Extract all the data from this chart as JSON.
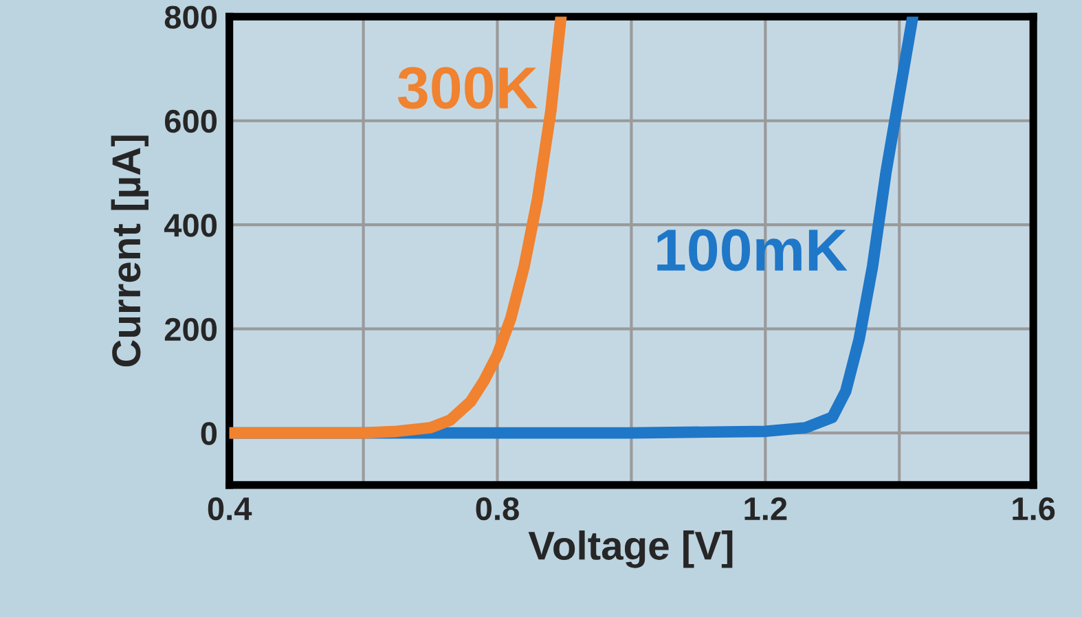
{
  "chart_data": {
    "type": "line",
    "xlabel": "Voltage [V]",
    "ylabel": "Current [µA]",
    "xlim": [
      0.4,
      1.6
    ],
    "xticks": [
      {
        "value": 0.4,
        "label": "0.4"
      },
      {
        "value": 0.6,
        "label": null
      },
      {
        "value": 0.8,
        "label": "0.8"
      },
      {
        "value": 1.0,
        "label": null
      },
      {
        "value": 1.2,
        "label": "1.2"
      },
      {
        "value": 1.4,
        "label": null
      },
      {
        "value": 1.6,
        "label": "1.6"
      }
    ],
    "ylim": [
      -100,
      800
    ],
    "yticks": [
      0,
      200,
      400,
      600,
      800
    ],
    "grid": true,
    "legend": false,
    "marker": "none",
    "line_style": "solid",
    "series": [
      {
        "name": "100mK",
        "color": "#1f77c8",
        "x": [
          0.4,
          1.0,
          1.2,
          1.26,
          1.3,
          1.32,
          1.34,
          1.36,
          1.38,
          1.4,
          1.42
        ],
        "values": [
          0,
          0,
          3,
          10,
          30,
          80,
          180,
          320,
          500,
          650,
          800
        ]
      },
      {
        "name": "300K",
        "color": "#f08230",
        "x": [
          0.4,
          0.6,
          0.65,
          0.7,
          0.73,
          0.76,
          0.78,
          0.8,
          0.82,
          0.84,
          0.86,
          0.88,
          0.895
        ],
        "values": [
          0,
          0,
          3,
          10,
          25,
          60,
          100,
          150,
          220,
          320,
          450,
          620,
          800
        ]
      }
    ]
  }
}
